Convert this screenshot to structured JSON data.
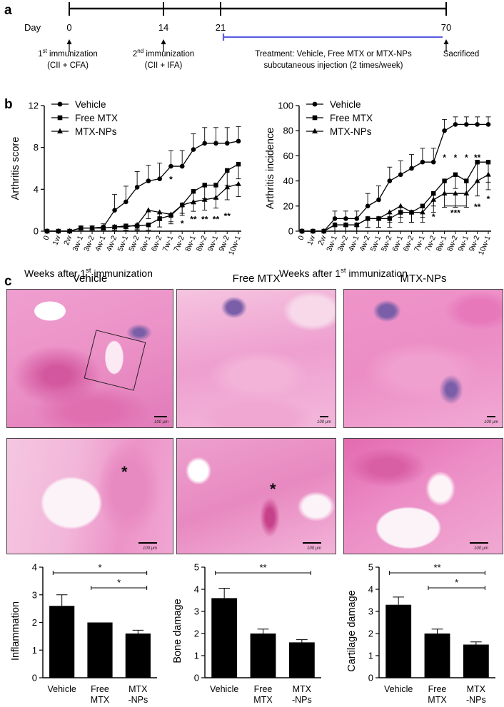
{
  "panel_labels": {
    "a": "a",
    "b": "b",
    "c": "c"
  },
  "timeline": {
    "day_label": "Day",
    "days": [
      "0",
      "14",
      "21",
      "70"
    ],
    "first_immunization": {
      "number": "1",
      "superscript": "st",
      "text": " immunization",
      "agents": "(CII + CFA)"
    },
    "second_immunization": {
      "number": "2",
      "superscript": "nd",
      "text": " immunization",
      "agents": "(CII + IFA)"
    },
    "treatment_line1": "Treatment: Vehicle, Free MTX or MTX-NPs",
    "treatment_line2": "subcutaneous injection (2 times/week)",
    "sacrificed": "Sacrificed",
    "colors": {
      "axis": "#000000",
      "treatment": "#5b5fe0"
    }
  },
  "histology": {
    "column_titles": [
      "Vehicle",
      "Free MTX",
      "MTX-NPs"
    ],
    "scale_low": "100 μm",
    "scale_high": "100 μm",
    "asterisk": "*",
    "colors": {
      "tissue": "#ec93c8",
      "dark": "#d3579e",
      "marrow": "#7a5fa8",
      "space": "#fbeaf3"
    }
  },
  "chart_data": [
    {
      "type": "line",
      "ylabel": "Arthritis score",
      "xlabel_main": "Weeks after 1",
      "xlabel_sup": "st",
      "xlabel_tail": " immunization",
      "ylim": [
        0,
        12
      ],
      "yticks": [
        "0",
        "4",
        "8",
        "12"
      ],
      "categories": [
        "0",
        "1w",
        "2w",
        "3w-1",
        "3w-2",
        "4w-1",
        "4w-2",
        "5w-1",
        "5w-2",
        "6w-1",
        "6w-2",
        "7w-1",
        "7w-2",
        "8w-1",
        "8w-2",
        "9w-1",
        "9w-2",
        "10w-1"
      ],
      "series": [
        {
          "name": "Vehicle",
          "marker": "circle",
          "values": [
            0,
            0,
            0,
            0.3,
            0.3,
            0.4,
            2.0,
            2.8,
            4.2,
            4.8,
            5.0,
            6.2,
            6.2,
            7.8,
            8.4,
            8.4,
            8.4,
            8.6
          ],
          "errors": [
            0,
            0,
            0,
            0.2,
            0.2,
            0.3,
            1.5,
            1.5,
            1.5,
            1.5,
            1.5,
            1.5,
            1.5,
            1.5,
            1.5,
            1.5,
            1.5,
            1.4
          ]
        },
        {
          "name": "Free MTX",
          "marker": "square",
          "values": [
            0,
            0,
            0,
            0.3,
            0.3,
            0.3,
            0.4,
            0.5,
            0.5,
            0.6,
            1.2,
            1.5,
            2.5,
            3.8,
            4.4,
            4.4,
            5.8,
            6.4
          ],
          "errors": [
            0,
            0,
            0,
            0.2,
            0.2,
            0.2,
            0.3,
            0.4,
            0.4,
            0.5,
            0.8,
            0.8,
            1.0,
            1.2,
            1.3,
            1.3,
            1.4,
            1.4
          ]
        },
        {
          "name": "MTX-NPs",
          "marker": "triangle",
          "values": [
            0,
            0,
            0,
            0.3,
            0.3,
            0.3,
            0.4,
            0.4,
            0.6,
            2.0,
            1.8,
            1.6,
            2.5,
            2.8,
            3.0,
            3.2,
            4.2,
            4.5
          ],
          "errors": [
            0,
            0,
            0,
            0.2,
            0.2,
            0.2,
            0.3,
            0.3,
            0.4,
            0.8,
            0.8,
            0.7,
            0.8,
            0.9,
            1.0,
            1.0,
            1.2,
            1.2
          ]
        }
      ],
      "annotations": [
        {
          "text": "*",
          "category": "7w-1",
          "value": 5.0
        },
        {
          "text": "*",
          "category": "7w-2",
          "value": 0.8
        },
        {
          "text": "**",
          "category": "8w-1",
          "value": 1.2
        },
        {
          "text": "**",
          "category": "8w-2",
          "value": 1.2
        },
        {
          "text": "**",
          "category": "9w-1",
          "value": 1.2
        },
        {
          "text": "**",
          "category": "9w-2",
          "value": 1.5
        }
      ]
    },
    {
      "type": "line",
      "ylabel": "Arthritis incidence",
      "xlabel_main": "Weeks after 1",
      "xlabel_sup": "st",
      "xlabel_tail": " immunization",
      "ylim": [
        0,
        100
      ],
      "yticks": [
        "0",
        "20",
        "40",
        "60",
        "80",
        "100"
      ],
      "categories": [
        "0",
        "1w",
        "2w",
        "3w-1",
        "3w-2",
        "4w-1",
        "4w-2",
        "5w-1",
        "5w-2",
        "6w-1",
        "6w-2",
        "7w-1",
        "7w-2",
        "8w-1",
        "8w-2",
        "9w-1",
        "9w-2",
        "10w-1"
      ],
      "series": [
        {
          "name": "Vehicle",
          "marker": "circle",
          "values": [
            0,
            0,
            0,
            10,
            10,
            10,
            20,
            25,
            40,
            45,
            50,
            55,
            55,
            80,
            85,
            85,
            85,
            85
          ],
          "errors": [
            0,
            0,
            0,
            6,
            6,
            6,
            10,
            11,
            11,
            11,
            11,
            11,
            11,
            9,
            6,
            6,
            6,
            6
          ]
        },
        {
          "name": "Free MTX",
          "marker": "square",
          "values": [
            0,
            0,
            0,
            5,
            5,
            5,
            10,
            10,
            10,
            15,
            15,
            20,
            30,
            40,
            45,
            40,
            55,
            55
          ],
          "errors": [
            0,
            0,
            0,
            5,
            5,
            5,
            7,
            7,
            7,
            8,
            8,
            9,
            10,
            11,
            11,
            11,
            16,
            16
          ]
        },
        {
          "name": "MTX-NPs",
          "marker": "triangle",
          "values": [
            0,
            0,
            0,
            5,
            5,
            5,
            10,
            10,
            15,
            20,
            15,
            15,
            25,
            30,
            30,
            30,
            40,
            45
          ],
          "errors": [
            0,
            0,
            0,
            5,
            5,
            5,
            7,
            7,
            8,
            9,
            8,
            8,
            10,
            11,
            11,
            11,
            12,
            12
          ]
        }
      ],
      "annotations": [
        {
          "text": "*",
          "category": "7w-2",
          "value": 12
        },
        {
          "text": "*",
          "category": "8w-1",
          "value": 59
        },
        {
          "text": "*",
          "category": "8w-2",
          "value": 59
        },
        {
          "text": "*",
          "category": "9w-1",
          "value": 59
        },
        {
          "text": "**",
          "category": "9w-2",
          "value": 59
        },
        {
          "text": "***",
          "category": "8w-2",
          "value": 15
        },
        {
          "text": "**",
          "category": "9w-2",
          "value": 20
        },
        {
          "text": "*",
          "category": "10w-1",
          "value": 26
        }
      ]
    },
    {
      "type": "bar",
      "ylabel": "Inflammation",
      "categories": [
        [
          "Vehicle"
        ],
        [
          "Free",
          "MTX"
        ],
        [
          "MTX",
          "-NPs"
        ]
      ],
      "values": [
        2.6,
        2.0,
        1.6
      ],
      "errors": [
        0.4,
        0.0,
        0.12
      ],
      "ylim": [
        0,
        4
      ],
      "yticks": [
        "0",
        "1",
        "2",
        "3",
        "4"
      ],
      "significance": [
        {
          "from": 0,
          "to": 2,
          "text": "*"
        },
        {
          "from": 1,
          "to": 2,
          "text": "*"
        }
      ]
    },
    {
      "type": "bar",
      "ylabel": "Bone damage",
      "categories": [
        [
          "Vehicle"
        ],
        [
          "Free",
          "MTX"
        ],
        [
          "MTX",
          "-NPs"
        ]
      ],
      "values": [
        3.6,
        2.0,
        1.6
      ],
      "errors": [
        0.45,
        0.2,
        0.12
      ],
      "ylim": [
        0,
        5
      ],
      "yticks": [
        "0",
        "1",
        "2",
        "3",
        "4",
        "5"
      ],
      "significance": [
        {
          "from": 0,
          "to": 2,
          "text": "**"
        }
      ]
    },
    {
      "type": "bar",
      "ylabel": "Cartilage damage",
      "categories": [
        [
          "Vehicle"
        ],
        [
          "Free",
          "MTX"
        ],
        [
          "MTX",
          "-NPs"
        ]
      ],
      "values": [
        3.3,
        2.0,
        1.5
      ],
      "errors": [
        0.35,
        0.2,
        0.12
      ],
      "ylim": [
        0,
        5
      ],
      "yticks": [
        "0",
        "1",
        "2",
        "3",
        "4",
        "5"
      ],
      "significance": [
        {
          "from": 0,
          "to": 2,
          "text": "**"
        },
        {
          "from": 1,
          "to": 2,
          "text": "*"
        }
      ]
    }
  ]
}
